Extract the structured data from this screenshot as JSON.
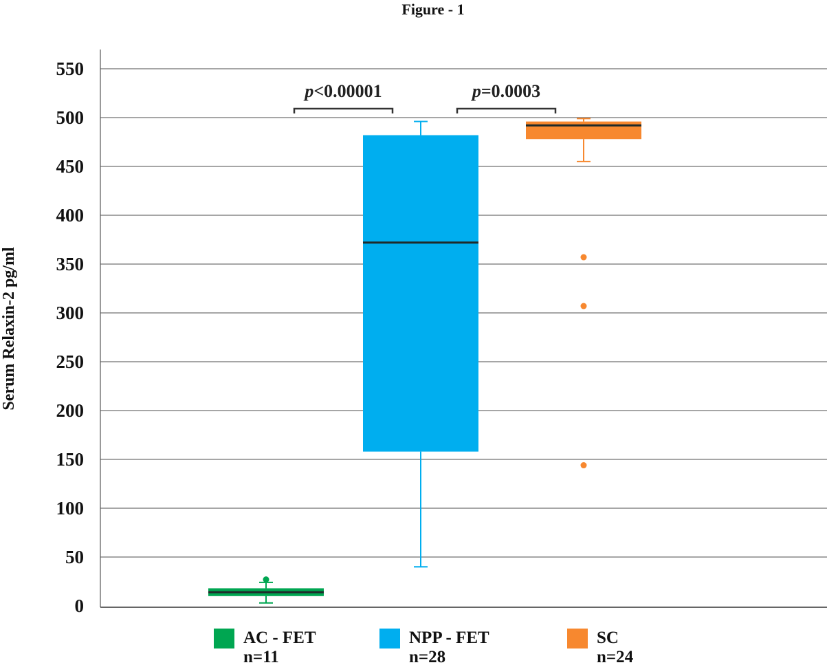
{
  "figure_title": "Figure - 1",
  "chart_data": {
    "type": "box",
    "title": "Figure - 1",
    "xlabel": "",
    "ylabel": "Serum Relaxin-2 pg/ml",
    "ylim": [
      0,
      550
    ],
    "yticks": [
      0,
      50,
      100,
      150,
      200,
      250,
      300,
      350,
      400,
      450,
      500,
      550
    ],
    "grid": true,
    "legend_position": "bottom",
    "series": [
      {
        "name": "AC - FET",
        "n_label": "n=11",
        "color": "#00a651",
        "whisker_low": 3,
        "q1": 10,
        "median": 14,
        "q3": 18,
        "whisker_high": 24,
        "outliers": [
          27
        ]
      },
      {
        "name": "NPP - FET",
        "n_label": "n=28",
        "color": "#00aeef",
        "whisker_low": 40,
        "q1": 158,
        "median": 372,
        "q3": 482,
        "whisker_high": 496,
        "outliers": []
      },
      {
        "name": "SC",
        "n_label": "n=24",
        "color": "#f7882f",
        "whisker_low": 455,
        "q1": 478,
        "median": 492,
        "q3": 496,
        "whisker_high": 499,
        "outliers": [
          357,
          307,
          144
        ]
      }
    ],
    "comparisons": [
      {
        "from": 0,
        "to": 1,
        "y": 513,
        "italic": "p",
        "rest": "<0.00001"
      },
      {
        "from": 1,
        "to": 2,
        "y": 513,
        "italic": "p",
        "rest": "=0.0003"
      }
    ]
  }
}
